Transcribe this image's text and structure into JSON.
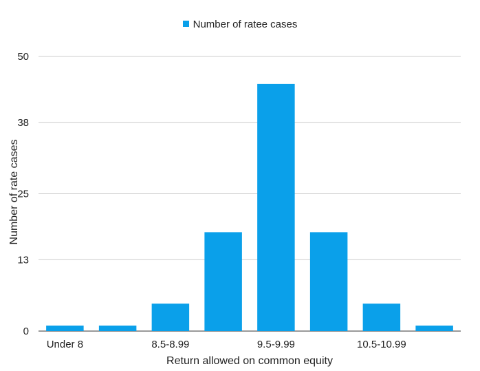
{
  "chart_data": {
    "type": "bar",
    "title": "",
    "legend": {
      "label": "Number of ratee cases",
      "position": "top",
      "color": "#0aa0ea"
    },
    "xlabel": "Return allowed on common equity",
    "ylabel": "Number of rate cases",
    "categories": [
      "Under 8",
      "",
      "8.5-8.99",
      "",
      "9.5-9.99",
      "",
      "10.5-10.99",
      ""
    ],
    "values": [
      1,
      1,
      5,
      18,
      45,
      18,
      5,
      1
    ],
    "yticks": [
      0,
      13,
      25,
      38,
      50
    ],
    "ylim": [
      0,
      50
    ],
    "grid": true,
    "bar_color": "#0aa0ea"
  }
}
